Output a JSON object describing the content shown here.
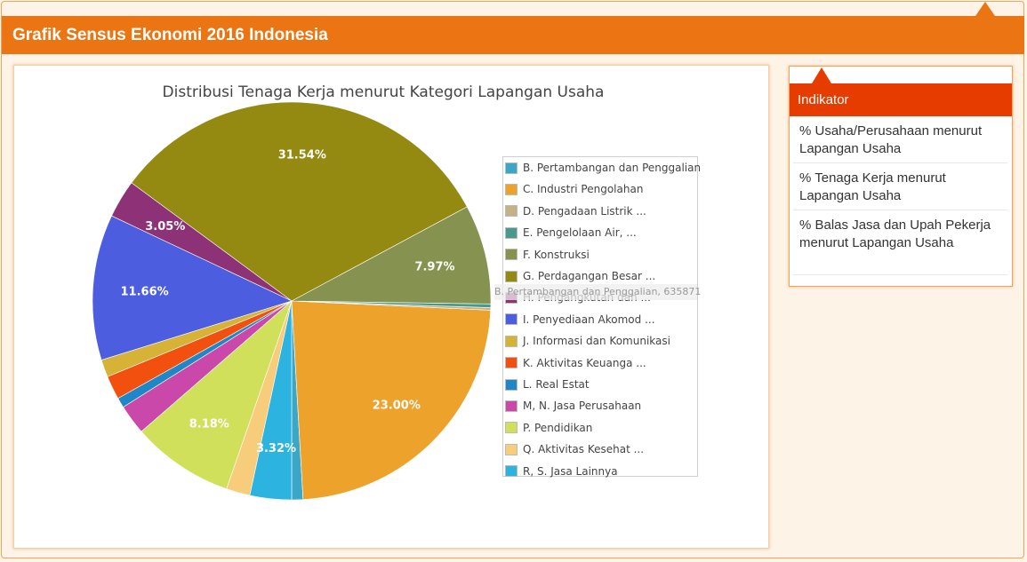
{
  "page": {
    "title": "Grafik Sensus Ekonomi 2016 Indonesia"
  },
  "indicator": {
    "header": "Indikator",
    "items": [
      "% Usaha/Perusahaan menurut Lapangan Usaha",
      "% Tenaga Kerja menurut Lapangan Usaha",
      "% Balas Jasa dan Upah Pekerja menurut Lapangan Usaha"
    ]
  },
  "tooltip": {
    "text": "B. Pertambangan dan Penggalian, 635871"
  },
  "chart_data": {
    "type": "pie",
    "title": "Distribusi Tenaga Kerja menurut Kategori Lapangan Usaha",
    "legend_position": "right",
    "start_angle_deg": 90,
    "slices": [
      {
        "name": "B. Pertambangan dan Penggalian",
        "legend": "B. Pertambangan dan Penggalian",
        "value": 0.9,
        "color": "#3aa7c6"
      },
      {
        "name": "C. Industri Pengolahan",
        "legend": "C. Industri Pengolahan",
        "value": 23.0,
        "label": "23.00%",
        "color": "#eda32b"
      },
      {
        "name": "D. Pengadaan Listrik",
        "legend": "D. Pengadaan Listrik ...",
        "value": 0.2,
        "color": "#c7b086"
      },
      {
        "name": "E. Pengelolaan Air",
        "legend": "E. Pengelolaan Air, ...",
        "value": 0.3,
        "color": "#4a9a8c"
      },
      {
        "name": "F. Konstruksi",
        "legend": "F. Konstruksi",
        "value": 7.97,
        "label": "7.97%",
        "color": "#86924f"
      },
      {
        "name": "G. Perdagangan Besar",
        "legend": "G. Perdagangan Besar ...",
        "value": 31.54,
        "label": "31.54%",
        "color": "#948a11"
      },
      {
        "name": "H. Pengangkutan dan",
        "legend": "H. Pengangkutan dan ...",
        "value": 3.05,
        "label": "3.05%",
        "color": "#8e3278"
      },
      {
        "name": "I. Penyediaan Akomodasi",
        "legend": "I. Penyediaan Akomod ...",
        "value": 11.66,
        "label": "11.66%",
        "color": "#4c5de0"
      },
      {
        "name": "J. Informasi dan Komunikasi",
        "legend": "J. Informasi dan Komunikasi",
        "value": 1.4,
        "color": "#d6b237"
      },
      {
        "name": "K. Aktivitas Keuangan",
        "legend": "K. Aktivitas Keuanga ...",
        "value": 1.9,
        "color": "#f1500f"
      },
      {
        "name": "L. Real Estat",
        "legend": "L. Real Estat",
        "value": 0.8,
        "color": "#1f86c8"
      },
      {
        "name": "M, N. Jasa Perusahaan",
        "legend": "M, N. Jasa Perusahaan",
        "value": 2.4,
        "color": "#c948a9"
      },
      {
        "name": "P. Pendidikan",
        "legend": "P. Pendidikan",
        "value": 8.18,
        "label": "8.18%",
        "color": "#d0e05a"
      },
      {
        "name": "Q. Aktivitas Kesehatan",
        "legend": "Q. Aktivitas Kesehat ...",
        "value": 1.9,
        "color": "#f7cc7a"
      },
      {
        "name": "R, S. Jasa Lainnya",
        "legend": "R, S. Jasa Lainnya",
        "value": 3.32,
        "label": "3.32%",
        "color": "#2db3e0"
      }
    ]
  }
}
